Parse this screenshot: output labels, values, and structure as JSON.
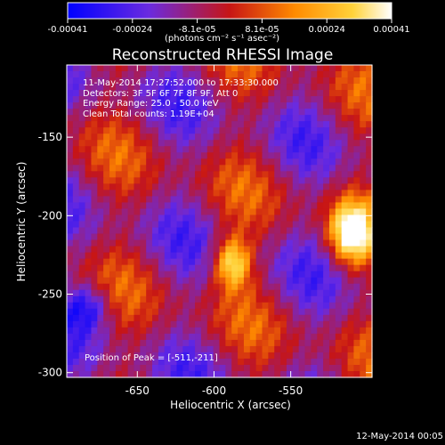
{
  "colorbar": {
    "ticks": [
      "-0.00041",
      "-0.00024",
      "-8.1e-05",
      "8.1e-05",
      "0.00024",
      "0.00041"
    ],
    "unit_label": "(photons cm⁻² s⁻¹ asec⁻²)",
    "range": [
      -0.00041,
      0.00041
    ],
    "colormap": [
      "#0000ff",
      "#6a2be0",
      "#c71515",
      "#ff8a00",
      "#ffd23a",
      "#ffffff"
    ]
  },
  "chart_data": {
    "type": "heatmap",
    "title": "Reconstructed RHESSI Image",
    "xlabel": "Heliocentric X (arcsec)",
    "ylabel": "Heliocentric Y (arcsec)",
    "xlim": [
      -696,
      -497
    ],
    "ylim": [
      -303,
      -104
    ],
    "xticks": [
      -650,
      -600,
      -550
    ],
    "yticks": [
      -150,
      -200,
      -250,
      -300
    ],
    "xtick_labels": [
      "-650",
      "-600",
      "-550"
    ],
    "ytick_labels": [
      "-150",
      "-200",
      "-250",
      "-300"
    ],
    "info_lines": [
      "11-May-2014 17:27:52.000 to 17:33:30.000",
      "Detectors: 3F 5F 6F 7F 8F 9F, Att 0",
      "Energy Range: 25.0 - 50.0 keV",
      "Clean    Total counts: 1.19E+04"
    ],
    "peak_label": "Position of Peak = [-511,-211]",
    "peak_position": [
      -511,
      -211
    ],
    "total_counts": 11900,
    "energy_range_keV": [
      25.0,
      50.0
    ],
    "peak_value": 0.00041,
    "min_value": -0.00041
  },
  "timestamp": "12-May-2014 00:05"
}
